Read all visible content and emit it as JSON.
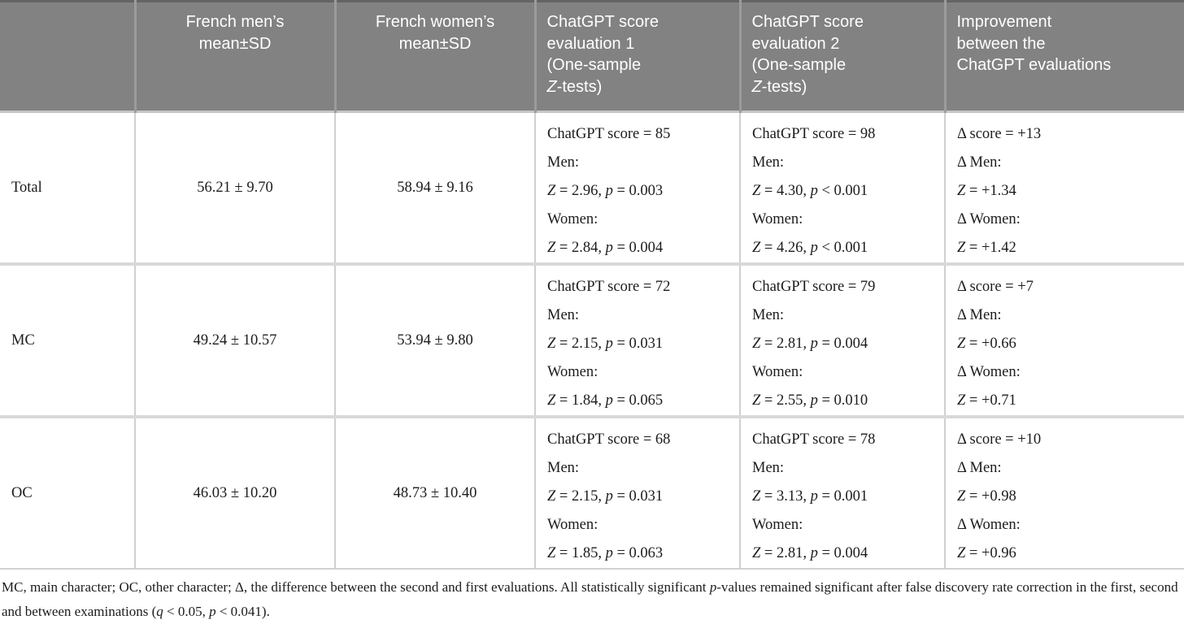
{
  "colors": {
    "header_bg": "#828282",
    "header_text": "#ffffff",
    "header_divider": "#9c9c9c",
    "body_grid": "#d0d0d0",
    "row_divider": "#d9d9d9",
    "top_border": "#646464",
    "body_text": "#1c1c1c"
  },
  "header": {
    "row_label": "",
    "french_men": "French men’s\nmean±SD",
    "french_women": "French women’s\nmean±SD",
    "eval1_rich": [
      {
        "t": "ChatGPT score\nevaluation 1\n(One-sample\n"
      },
      {
        "t": "Z",
        "i": true
      },
      {
        "t": "-tests)"
      }
    ],
    "eval2_rich": [
      {
        "t": "ChatGPT score\nevaluation 2\n(One-sample\n"
      },
      {
        "t": "Z",
        "i": true
      },
      {
        "t": "-tests)"
      }
    ],
    "improvement": "Improvement\nbetween the\nChatGPT evaluations"
  },
  "rows": [
    {
      "label": "Total",
      "men_mean": "56.21 ± 9.70",
      "women_mean": "58.94 ± 9.16",
      "eval1_lines": [
        [
          {
            "t": "ChatGPT score = 85"
          }
        ],
        [
          {
            "t": "Men:"
          }
        ],
        [
          {
            "t": "Z",
            "i": true
          },
          {
            "t": " = 2.96, "
          },
          {
            "t": "p",
            "i": true
          },
          {
            "t": " = 0.003"
          }
        ],
        [
          {
            "t": "Women:"
          }
        ],
        [
          {
            "t": "Z",
            "i": true
          },
          {
            "t": " = 2.84, "
          },
          {
            "t": "p",
            "i": true
          },
          {
            "t": " = 0.004"
          }
        ]
      ],
      "eval2_lines": [
        [
          {
            "t": "ChatGPT score = 98"
          }
        ],
        [
          {
            "t": "Men:"
          }
        ],
        [
          {
            "t": "Z",
            "i": true
          },
          {
            "t": " = 4.30, "
          },
          {
            "t": "p",
            "i": true
          },
          {
            "t": " < 0.001"
          }
        ],
        [
          {
            "t": "Women:"
          }
        ],
        [
          {
            "t": "Z",
            "i": true
          },
          {
            "t": " = 4.26, "
          },
          {
            "t": "p",
            "i": true
          },
          {
            "t": " < 0.001"
          }
        ]
      ],
      "improvement_lines": [
        [
          {
            "t": "Δ score = +13"
          }
        ],
        [
          {
            "t": "Δ Men:"
          }
        ],
        [
          {
            "t": "Z",
            "i": true
          },
          {
            "t": " = +1.34"
          }
        ],
        [
          {
            "t": "Δ Women:"
          }
        ],
        [
          {
            "t": "Z",
            "i": true
          },
          {
            "t": " = +1.42"
          }
        ]
      ]
    },
    {
      "label": "MC",
      "men_mean": "49.24 ± 10.57",
      "women_mean": "53.94 ± 9.80",
      "eval1_lines": [
        [
          {
            "t": "ChatGPT score = 72"
          }
        ],
        [
          {
            "t": "Men:"
          }
        ],
        [
          {
            "t": "Z",
            "i": true
          },
          {
            "t": " = 2.15, "
          },
          {
            "t": "p",
            "i": true
          },
          {
            "t": " = 0.031"
          }
        ],
        [
          {
            "t": "Women:"
          }
        ],
        [
          {
            "t": "Z",
            "i": true
          },
          {
            "t": " = 1.84, "
          },
          {
            "t": "p",
            "i": true
          },
          {
            "t": " = 0.065"
          }
        ]
      ],
      "eval2_lines": [
        [
          {
            "t": "ChatGPT score = 79"
          }
        ],
        [
          {
            "t": "Men:"
          }
        ],
        [
          {
            "t": "Z",
            "i": true
          },
          {
            "t": " = 2.81, "
          },
          {
            "t": "p",
            "i": true
          },
          {
            "t": " = 0.004"
          }
        ],
        [
          {
            "t": "Women:"
          }
        ],
        [
          {
            "t": "Z",
            "i": true
          },
          {
            "t": " = 2.55, "
          },
          {
            "t": "p",
            "i": true
          },
          {
            "t": " = 0.010"
          }
        ]
      ],
      "improvement_lines": [
        [
          {
            "t": "Δ score = +7"
          }
        ],
        [
          {
            "t": "Δ Men:"
          }
        ],
        [
          {
            "t": "Z",
            "i": true
          },
          {
            "t": " = +0.66"
          }
        ],
        [
          {
            "t": "Δ Women:"
          }
        ],
        [
          {
            "t": "Z",
            "i": true
          },
          {
            "t": " = +0.71"
          }
        ]
      ]
    },
    {
      "label": "OC",
      "men_mean": "46.03 ± 10.20",
      "women_mean": "48.73 ± 10.40",
      "eval1_lines": [
        [
          {
            "t": "ChatGPT score = 68"
          }
        ],
        [
          {
            "t": "Men:"
          }
        ],
        [
          {
            "t": "Z",
            "i": true
          },
          {
            "t": " = 2.15, "
          },
          {
            "t": "p",
            "i": true
          },
          {
            "t": " = 0.031"
          }
        ],
        [
          {
            "t": "Women:"
          }
        ],
        [
          {
            "t": "Z",
            "i": true
          },
          {
            "t": " = 1.85, "
          },
          {
            "t": "p",
            "i": true
          },
          {
            "t": " = 0.063"
          }
        ]
      ],
      "eval2_lines": [
        [
          {
            "t": "ChatGPT score = 78"
          }
        ],
        [
          {
            "t": "Men:"
          }
        ],
        [
          {
            "t": "Z",
            "i": true
          },
          {
            "t": " = 3.13, "
          },
          {
            "t": "p",
            "i": true
          },
          {
            "t": " = 0.001"
          }
        ],
        [
          {
            "t": "Women:"
          }
        ],
        [
          {
            "t": "Z",
            "i": true
          },
          {
            "t": " = 2.81, "
          },
          {
            "t": "p",
            "i": true
          },
          {
            "t": " = 0.004"
          }
        ]
      ],
      "improvement_lines": [
        [
          {
            "t": "Δ score = +10"
          }
        ],
        [
          {
            "t": "Δ Men:"
          }
        ],
        [
          {
            "t": "Z",
            "i": true
          },
          {
            "t": " = +0.98"
          }
        ],
        [
          {
            "t": "Δ Women:"
          }
        ],
        [
          {
            "t": "Z",
            "i": true
          },
          {
            "t": " = +0.96"
          }
        ]
      ]
    }
  ],
  "footnote_rich": [
    {
      "t": "MC, main character; OC, other character; Δ, the difference between the second and first evaluations. All statistically significant "
    },
    {
      "t": "p",
      "i": true
    },
    {
      "t": "-values remained significant after false discovery rate correction in the first, second and between examinations ("
    },
    {
      "t": "q",
      "i": true
    },
    {
      "t": " < 0.05, "
    },
    {
      "t": "p",
      "i": true
    },
    {
      "t": " < 0.041)."
    }
  ]
}
